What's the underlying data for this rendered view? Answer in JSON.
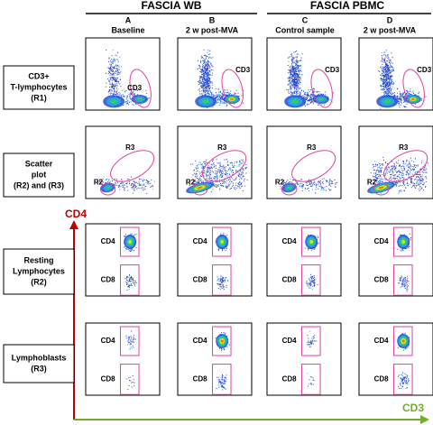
{
  "headers": [
    {
      "title": "FASCIA WB"
    },
    {
      "title": "FASCIA PBMC"
    }
  ],
  "columns": [
    {
      "letter": "A",
      "label": "Baseline"
    },
    {
      "letter": "B",
      "label": "2 w post-MVA"
    },
    {
      "letter": "C",
      "label": "Control sample"
    },
    {
      "letter": "D",
      "label": "2 w post-MVA"
    }
  ],
  "rows": [
    {
      "label": [
        "CD3+",
        "T-lymphocytes",
        "(R1)"
      ],
      "gates": [
        "CD3"
      ]
    },
    {
      "label": [
        "Scatter",
        "plot",
        "(R2) and (R3)"
      ],
      "gates": [
        "R3",
        "R2"
      ]
    },
    {
      "label": [
        "Resting",
        "Lymphocytes",
        "(R2)"
      ],
      "gates": [
        "CD4",
        "CD8"
      ]
    },
    {
      "label": [
        "Lymphoblasts",
        "(R3)"
      ],
      "gates": [
        "CD4",
        "CD8"
      ]
    }
  ],
  "axes": {
    "y": "CD4",
    "x": "CD3"
  }
}
